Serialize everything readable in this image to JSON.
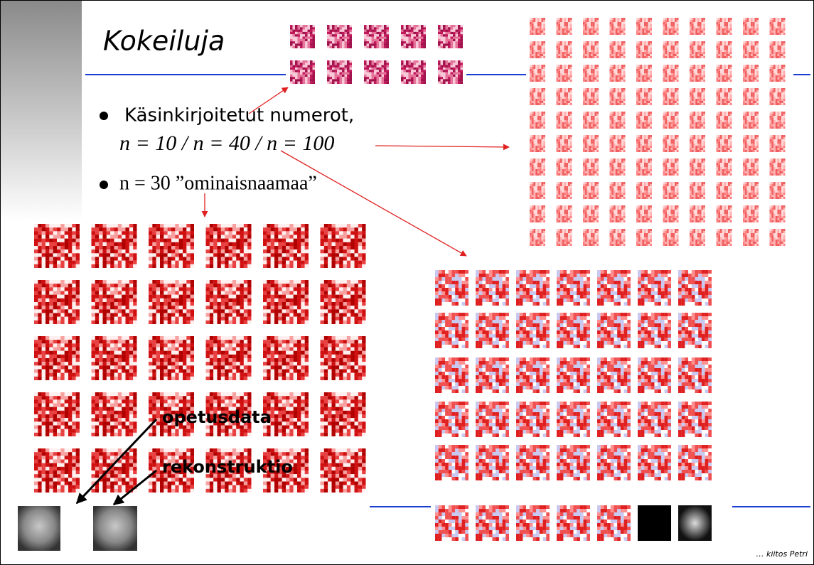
{
  "slide": {
    "title": "Kokeiluja",
    "bullets": [
      {
        "line1": "Käsinkirjoitetut numerot,",
        "line2": "n = 10 / n = 40 / n = 100"
      },
      {
        "line1": "n = 30 ”ominaisnaamaa”"
      }
    ],
    "labels": {
      "training": "opetusdata",
      "reconstruction": "rekonstruktio"
    },
    "credit": "… kiitos Petri"
  }
}
